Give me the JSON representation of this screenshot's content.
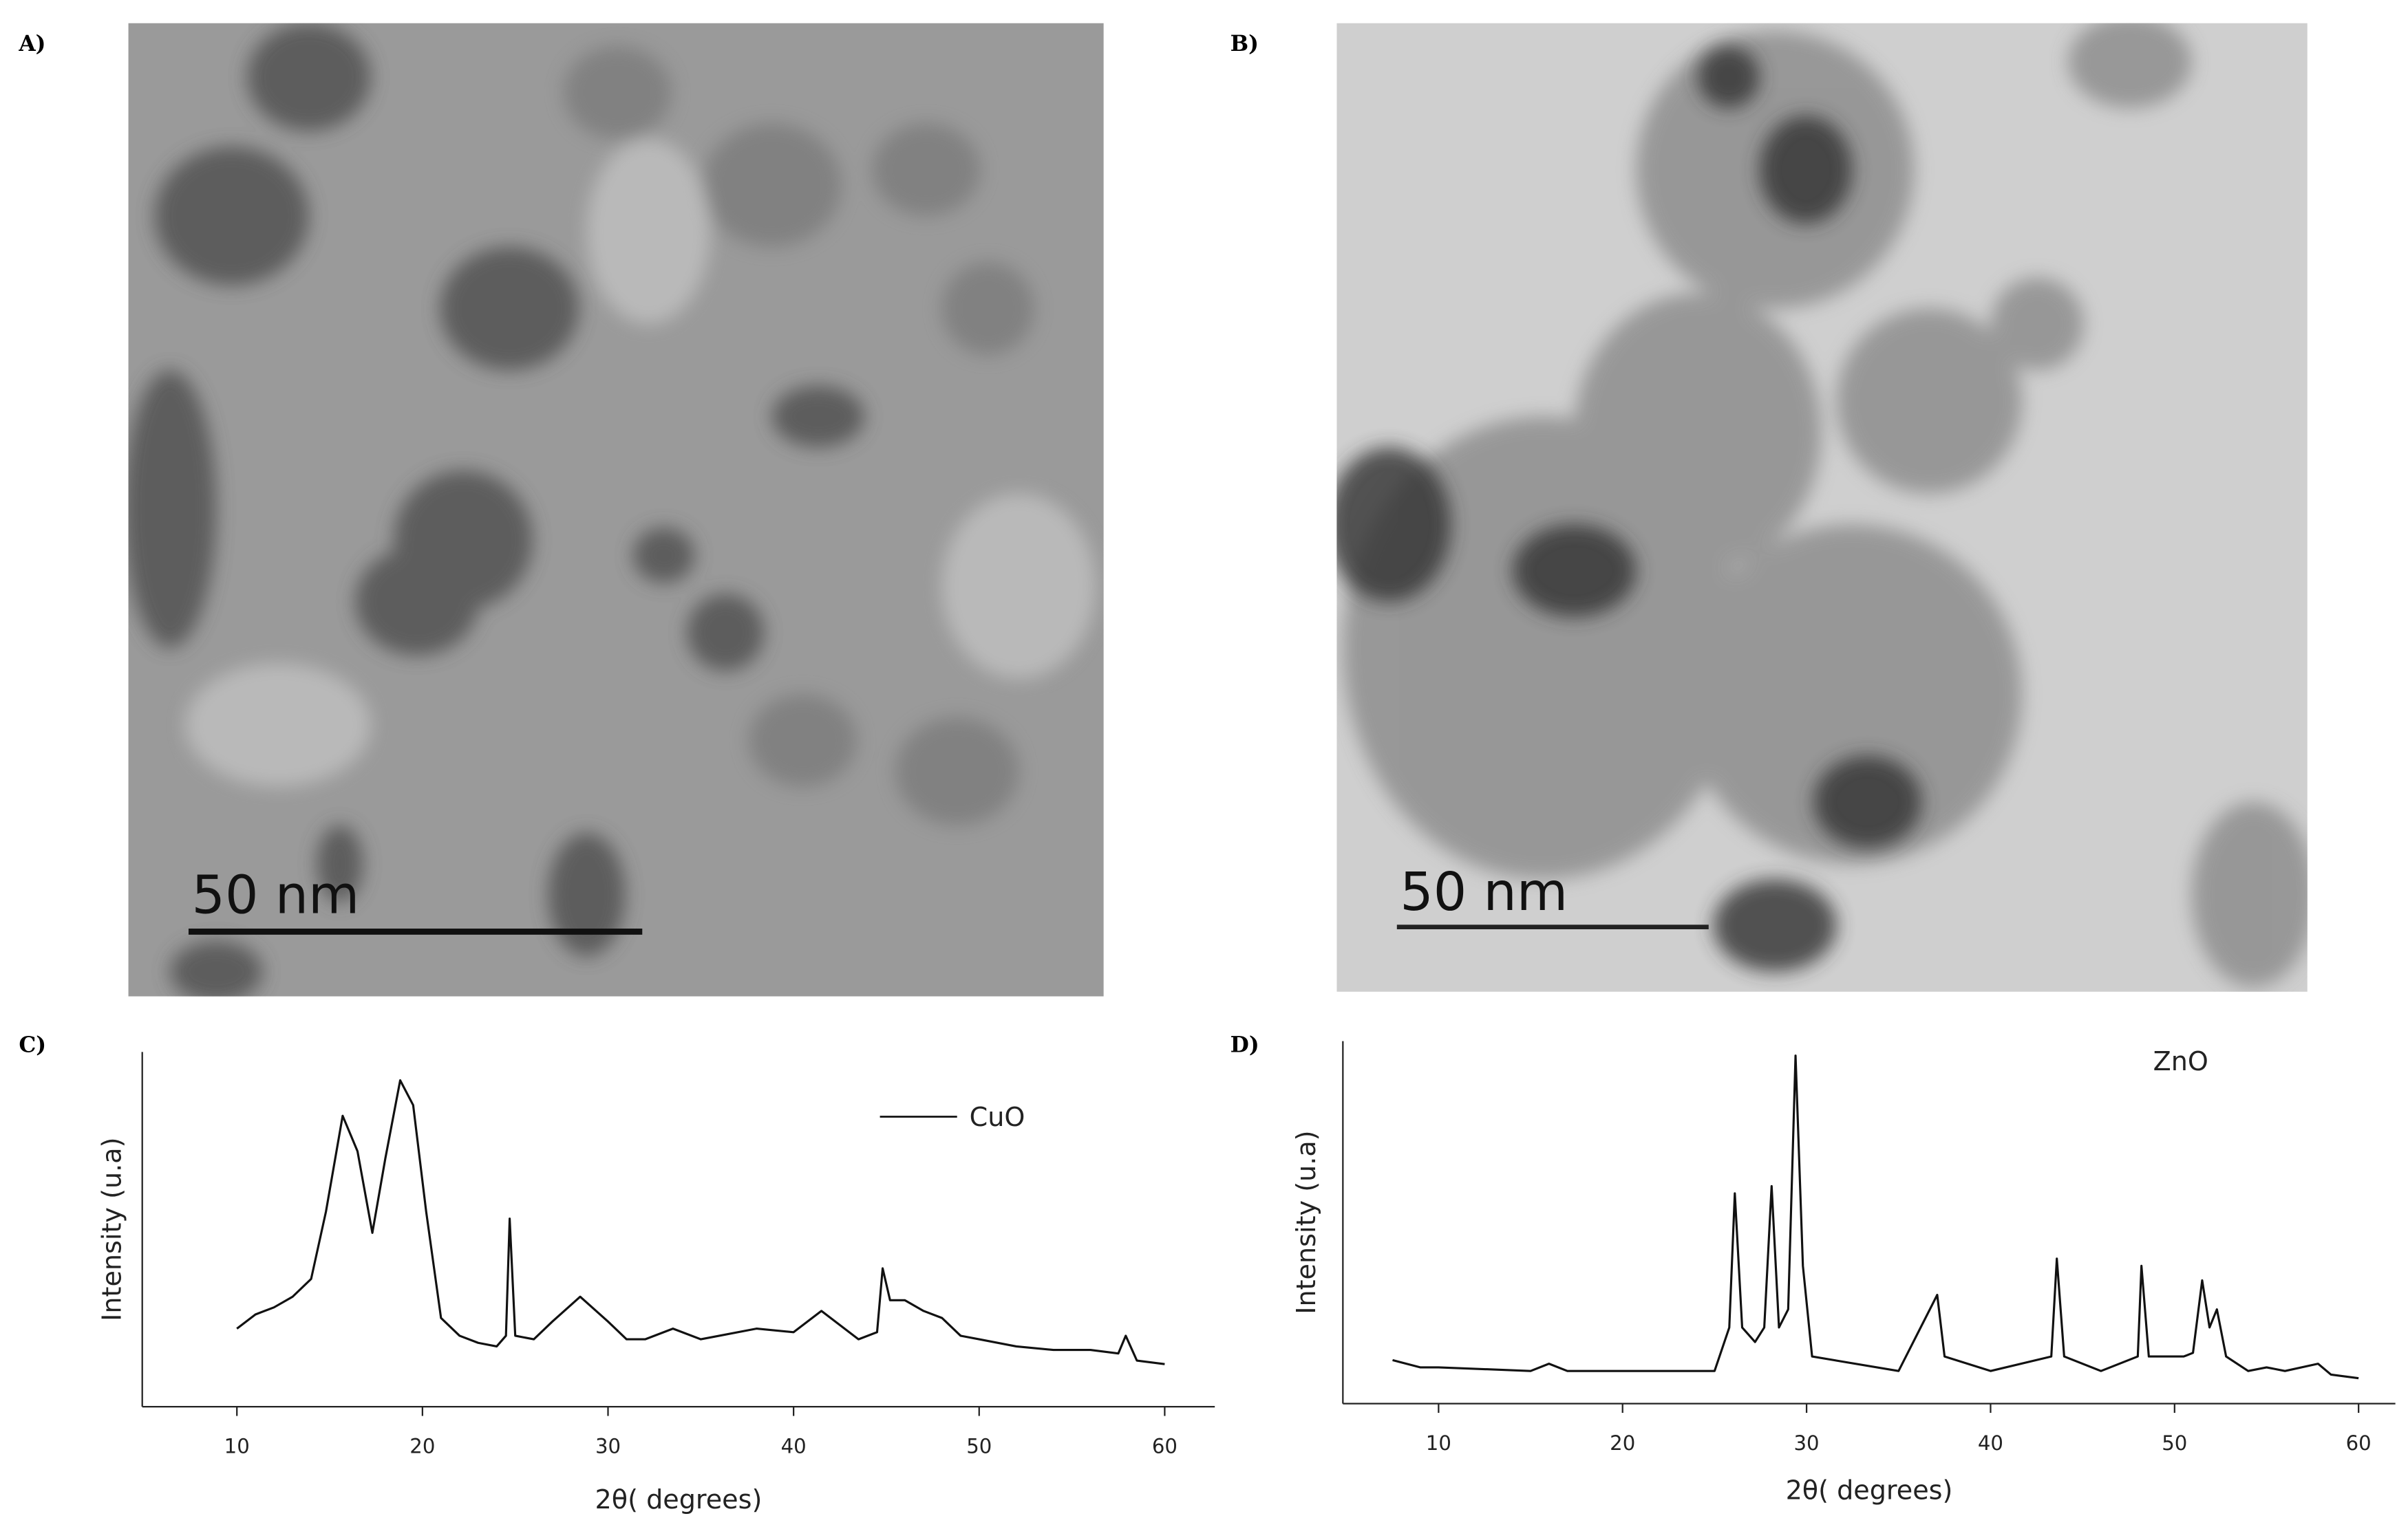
{
  "panels": {
    "labels": [
      "A)",
      "B)",
      "C)",
      "D)"
    ],
    "scale_bar_labels": [
      "50 nm",
      "50 nm"
    ]
  },
  "chart_data": [
    {
      "type": "line",
      "x_label": "2θ( degrees)",
      "y_label": "Intensity (u.a)",
      "xlim": [
        4.9,
        62.7
      ],
      "ylim": [
        0,
        100
      ],
      "xticks": [
        10,
        20,
        30,
        40,
        50,
        60
      ],
      "legend": "upper right",
      "series": [
        {
          "name": "CuO",
          "color": "#111111",
          "x": [
            10,
            11,
            12,
            13,
            14,
            14.8,
            15.7,
            16.5,
            17.3,
            18,
            18.8,
            19.5,
            20.2,
            21,
            22,
            23,
            24,
            24.5,
            24.7,
            25,
            26,
            27,
            28.5,
            30,
            31,
            32,
            33.5,
            35,
            36,
            38,
            40,
            41.5,
            42.5,
            43.5,
            44.5,
            44.8,
            45.2,
            46,
            47,
            48,
            49,
            50,
            52,
            54,
            56,
            57.5,
            57.9,
            58.5,
            60
          ],
          "values": [
            22,
            26,
            28,
            31,
            36,
            55,
            82,
            72,
            49,
            70,
            92,
            85,
            55,
            25,
            20,
            18,
            17,
            20,
            53,
            20,
            19,
            24,
            31,
            24,
            19,
            19,
            22,
            19,
            20,
            22,
            21,
            27,
            23,
            19,
            21,
            39,
            30,
            30,
            27,
            25,
            20,
            19,
            17,
            16,
            16,
            15,
            20,
            13,
            12
          ]
        }
      ]
    },
    {
      "type": "line",
      "x_label": "2θ( degrees)",
      "y_label": "Intensity (u.a)",
      "xlim": [
        4.8,
        62
      ],
      "ylim": [
        0,
        100
      ],
      "xticks": [
        10,
        20,
        30,
        40,
        50,
        60
      ],
      "series": [
        {
          "name": "ZnO",
          "color": "#111111",
          "x": [
            7.5,
            9,
            10,
            15,
            16,
            17,
            25,
            25.8,
            26.1,
            26.5,
            27.2,
            27.7,
            28.1,
            28.5,
            29,
            29.4,
            29.8,
            30.3,
            35,
            37.1,
            37.5,
            40,
            43.3,
            43.6,
            44,
            46,
            48,
            48.2,
            48.6,
            50.5,
            51,
            51.5,
            51.9,
            52.3,
            52.8,
            54,
            55,
            56,
            57.8,
            58.5,
            60
          ],
          "values": [
            12,
            10,
            10,
            9,
            11,
            9,
            9,
            21,
            58,
            21,
            17,
            21,
            60,
            21,
            26,
            96,
            38,
            13,
            9,
            30,
            13,
            9,
            13,
            40,
            13,
            9,
            13,
            38,
            13,
            13,
            14,
            34,
            21,
            26,
            13,
            9,
            10,
            9,
            11,
            8,
            7
          ]
        }
      ]
    }
  ]
}
